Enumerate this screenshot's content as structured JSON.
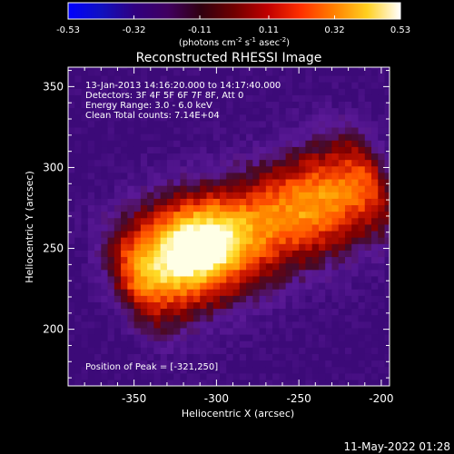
{
  "colorbar": {
    "ticks": [
      "-0.53",
      "-0.32",
      "-0.11",
      "0.11",
      "0.32",
      "0.53"
    ],
    "unit_label": "(photons cm",
    "unit_exp1": "-2",
    "unit_mid": " s",
    "unit_exp2": "-1",
    "unit_mid2": " asec",
    "unit_exp3": "-2",
    "unit_end": ")",
    "min": -0.53,
    "max": 0.53,
    "colors": [
      "#0000ff",
      "#1010c0",
      "#300080",
      "#400060",
      "#300010",
      "#700000",
      "#c00000",
      "#ff3000",
      "#ff8000",
      "#ffd020",
      "#ffffff"
    ]
  },
  "plot": {
    "title": "Reconstructed RHESSI Image",
    "info_lines": [
      "13-Jan-2013 14:16:20.000 to 14:17:40.000",
      "Detectors: 3F 4F 5F 6F 7F 8F, Att 0",
      "Energy Range: 3.0 - 6.0 keV",
      "Clean     Total counts: 7.14E+04"
    ],
    "peak_text": "Position of Peak = [-321,250]",
    "xlabel": "Heliocentric X (arcsec)",
    "ylabel": "Heliocentric Y (arcsec)",
    "xticks": [
      "-350",
      "-300",
      "-250",
      "-200"
    ],
    "yticks": [
      "200",
      "250",
      "300",
      "350"
    ],
    "xlim": [
      -390,
      -195
    ],
    "ylim": [
      165,
      362
    ]
  },
  "image_data": {
    "peak": {
      "x": -321,
      "y": 250
    },
    "pixel_size_arcsec": 4
  },
  "footer": {
    "date": "11-May-2022 01:28"
  }
}
